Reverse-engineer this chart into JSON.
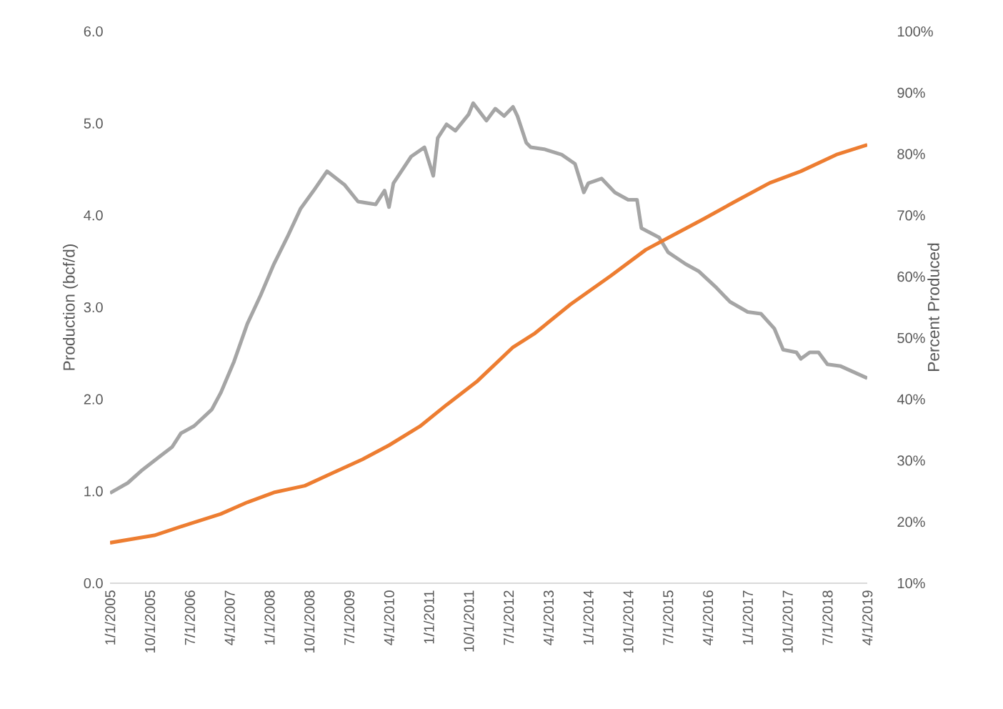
{
  "chart_data": {
    "type": "line",
    "ylabel": "Production (bcf/d)",
    "y2label": "Percent Produced",
    "xlim": [
      "2005-01",
      "2019-04"
    ],
    "xticks": [
      {
        "value": "2005-01",
        "label": "1/1/2005"
      },
      {
        "value": "2005-10",
        "label": "10/1/2005"
      },
      {
        "value": "2006-07",
        "label": "7/1/2006"
      },
      {
        "value": "2007-04",
        "label": "4/1/2007"
      },
      {
        "value": "2008-01",
        "label": "1/1/2008"
      },
      {
        "value": "2008-10",
        "label": "10/1/2008"
      },
      {
        "value": "2009-07",
        "label": "7/1/2009"
      },
      {
        "value": "2010-04",
        "label": "4/1/2010"
      },
      {
        "value": "2011-01",
        "label": "1/1/2011"
      },
      {
        "value": "2011-10",
        "label": "10/1/2011"
      },
      {
        "value": "2012-07",
        "label": "7/1/2012"
      },
      {
        "value": "2013-04",
        "label": "4/1/2013"
      },
      {
        "value": "2014-01",
        "label": "1/1/2014"
      },
      {
        "value": "2014-10",
        "label": "10/1/2014"
      },
      {
        "value": "2015-07",
        "label": "7/1/2015"
      },
      {
        "value": "2016-04",
        "label": "4/1/2016"
      },
      {
        "value": "2017-01",
        "label": "1/1/2017"
      },
      {
        "value": "2017-10",
        "label": "10/1/2017"
      },
      {
        "value": "2018-07",
        "label": "7/1/2018"
      },
      {
        "value": "2019-04",
        "label": "4/1/2019"
      }
    ],
    "ylim": [
      0,
      6
    ],
    "yticks": [
      {
        "value": 0,
        "label": "0.0"
      },
      {
        "value": 1,
        "label": "1.0"
      },
      {
        "value": 2,
        "label": "2.0"
      },
      {
        "value": 3,
        "label": "3.0"
      },
      {
        "value": 4,
        "label": "4.0"
      },
      {
        "value": 5,
        "label": "5.0"
      },
      {
        "value": 6,
        "label": "6.0"
      }
    ],
    "y2lim": [
      10,
      100
    ],
    "y2ticks": [
      {
        "value": 10,
        "label": "10%"
      },
      {
        "value": 20,
        "label": "20%"
      },
      {
        "value": 30,
        "label": "30%"
      },
      {
        "value": 40,
        "label": "40%"
      },
      {
        "value": 50,
        "label": "50%"
      },
      {
        "value": 60,
        "label": "60%"
      },
      {
        "value": 70,
        "label": "70%"
      },
      {
        "value": 80,
        "label": "80%"
      },
      {
        "value": 90,
        "label": "90%"
      },
      {
        "value": 100,
        "label": "100%"
      }
    ],
    "series": [
      {
        "color": "#a5a5a5",
        "x": [
          "2005-01",
          "2005-05",
          "2005-08",
          "2005-12",
          "2006-03",
          "2006-05",
          "2006-08",
          "2006-12",
          "2007-02",
          "2007-05",
          "2007-08",
          "2007-11",
          "2008-02",
          "2008-05",
          "2008-08",
          "2008-11",
          "2009-02",
          "2009-06",
          "2009-09",
          "2010-01",
          "2010-03",
          "2010-04",
          "2010-05",
          "2010-09",
          "2010-12",
          "2011-02",
          "2011-03",
          "2011-05",
          "2011-07",
          "2011-10",
          "2011-11",
          "2012-02",
          "2012-04",
          "2012-06",
          "2012-08",
          "2012-09",
          "2012-11",
          "2012-12",
          "2013-03",
          "2013-07",
          "2013-10",
          "2013-12",
          "2014-01",
          "2014-04",
          "2014-07",
          "2014-10",
          "2014-12",
          "2015-01",
          "2015-05",
          "2015-07",
          "2015-11",
          "2016-02",
          "2016-06",
          "2016-09",
          "2017-01",
          "2017-04",
          "2017-07",
          "2017-09",
          "2017-12",
          "2018-01",
          "2018-03",
          "2018-05",
          "2018-07",
          "2018-10",
          "2019-04"
        ],
        "values": [
          0.98,
          1.09,
          1.22,
          1.37,
          1.48,
          1.63,
          1.71,
          1.89,
          2.07,
          2.41,
          2.82,
          3.13,
          3.47,
          3.76,
          4.07,
          4.27,
          4.48,
          4.33,
          4.15,
          4.12,
          4.27,
          4.09,
          4.35,
          4.64,
          4.74,
          4.43,
          4.84,
          4.99,
          4.92,
          5.1,
          5.22,
          5.03,
          5.16,
          5.08,
          5.18,
          5.08,
          4.79,
          4.74,
          4.72,
          4.66,
          4.56,
          4.25,
          4.35,
          4.4,
          4.25,
          4.17,
          4.17,
          3.86,
          3.76,
          3.6,
          3.47,
          3.39,
          3.21,
          3.06,
          2.95,
          2.93,
          2.77,
          2.54,
          2.51,
          2.44,
          2.51,
          2.51,
          2.38,
          2.36,
          2.23
        ]
      },
      {
        "color": "#ed7d31",
        "axis": "y2",
        "x": [
          "2005-01",
          "2005-11",
          "2006-07",
          "2007-02",
          "2007-08",
          "2008-02",
          "2008-09",
          "2009-03",
          "2009-10",
          "2010-04",
          "2010-11",
          "2011-05",
          "2011-12",
          "2012-08",
          "2013-01",
          "2013-09",
          "2014-06",
          "2015-02",
          "2015-09",
          "2016-03",
          "2016-10",
          "2017-06",
          "2018-01",
          "2018-09",
          "2019-04"
        ],
        "values": [
          16.6,
          17.8,
          19.7,
          21.3,
          23.2,
          24.8,
          25.9,
          27.9,
          30.2,
          32.5,
          35.6,
          39.1,
          43.0,
          48.5,
          50.8,
          55.5,
          60.1,
          64.4,
          67.1,
          69.4,
          72.2,
          75.3,
          77.2,
          79.9,
          81.5
        ]
      }
    ]
  }
}
